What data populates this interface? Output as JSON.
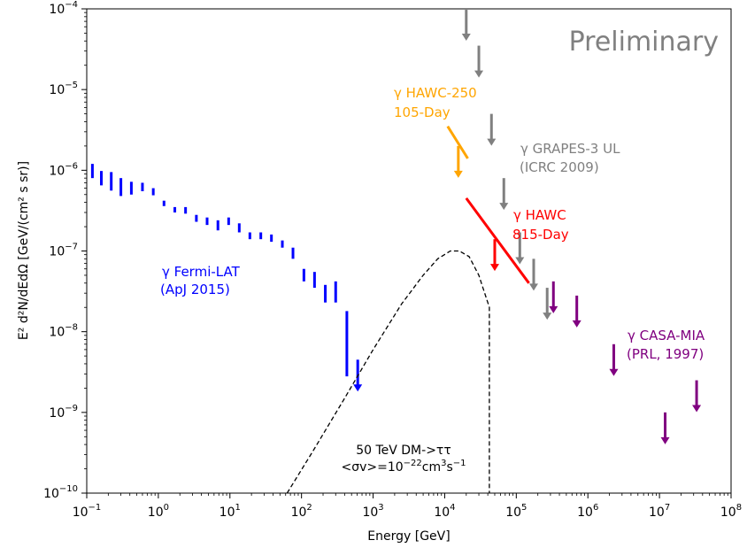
{
  "chart_data": {
    "type": "scatter",
    "xlabel": "Energy [GeV]",
    "ylabel": "E² d²N/dEdΩ  [GeV/(cm² s sr)]",
    "xscale": "log",
    "yscale": "log",
    "xlim": [
      0.1,
      100000000
    ],
    "ylim": [
      1e-10,
      0.0001
    ],
    "grid": false,
    "x_ticks": [
      {
        "value": 0.1,
        "base": "10",
        "exp": "−1"
      },
      {
        "value": 1,
        "base": "10",
        "exp": "0"
      },
      {
        "value": 10,
        "base": "10",
        "exp": "1"
      },
      {
        "value": 100,
        "base": "10",
        "exp": "2"
      },
      {
        "value": 1000,
        "base": "10",
        "exp": "3"
      },
      {
        "value": 10000,
        "base": "10",
        "exp": "4"
      },
      {
        "value": 100000,
        "base": "10",
        "exp": "5"
      },
      {
        "value": 1000000,
        "base": "10",
        "exp": "6"
      },
      {
        "value": 10000000,
        "base": "10",
        "exp": "7"
      },
      {
        "value": 100000000,
        "base": "10",
        "exp": "8"
      }
    ],
    "y_ticks": [
      {
        "value": 1e-10,
        "base": "10",
        "exp": "−10"
      },
      {
        "value": 1e-09,
        "base": "10",
        "exp": "−9"
      },
      {
        "value": 1e-08,
        "base": "10",
        "exp": "−8"
      },
      {
        "value": 1e-07,
        "base": "10",
        "exp": "−7"
      },
      {
        "value": 1e-06,
        "base": "10",
        "exp": "−6"
      },
      {
        "value": 1e-05,
        "base": "10",
        "exp": "−5"
      },
      {
        "value": 0.0001,
        "base": "10",
        "exp": "−4"
      }
    ],
    "watermark": "Preliminary",
    "annotations": {
      "fermi": {
        "line1": "γ Fermi-LAT",
        "line2": "(ApJ 2015)",
        "color": "#0000ff"
      },
      "hawc250": {
        "line1": "γ HAWC-250",
        "line2": "105-Day",
        "color": "#ffa500"
      },
      "grapes": {
        "line1": "γ GRAPES-3 UL",
        "line2": "(ICRC 2009)",
        "color": "#808080"
      },
      "hawc815": {
        "line1": "γ HAWC",
        "line2": "815-Day",
        "color": "#ff0000"
      },
      "casa": {
        "line1": "γ CASA-MIA",
        "line2": "(PRL, 1997)",
        "color": "#800080"
      },
      "dm": {
        "line1": "50 TeV DM->ττ",
        "line2_a": "<σv>=10",
        "line2_exp1": "−22",
        "line2_b": "cm",
        "line2_exp2": "3",
        "line2_c": "s",
        "line2_exp3": "−1"
      }
    },
    "series": [
      {
        "name": "γ Fermi-LAT",
        "kind": "error_bars",
        "color": "#0000ff",
        "points": [
          {
            "x": 0.12,
            "y_low": 8e-07,
            "y_high": 1.2e-06
          },
          {
            "x": 0.16,
            "y_low": 6.5e-07,
            "y_high": 9.8e-07
          },
          {
            "x": 0.22,
            "y_low": 5.6e-07,
            "y_high": 9.5e-07
          },
          {
            "x": 0.3,
            "y_low": 4.8e-07,
            "y_high": 8e-07
          },
          {
            "x": 0.42,
            "y_low": 5e-07,
            "y_high": 7.2e-07
          },
          {
            "x": 0.6,
            "y_low": 5.5e-07,
            "y_high": 7e-07
          },
          {
            "x": 0.85,
            "y_low": 4.9e-07,
            "y_high": 6e-07
          },
          {
            "x": 1.2,
            "y_low": 3.6e-07,
            "y_high": 4.2e-07
          },
          {
            "x": 1.7,
            "y_low": 3e-07,
            "y_high": 3.5e-07
          },
          {
            "x": 2.4,
            "y_low": 2.9e-07,
            "y_high": 3.5e-07
          },
          {
            "x": 3.4,
            "y_low": 2.3e-07,
            "y_high": 2.8e-07
          },
          {
            "x": 4.8,
            "y_low": 2.1e-07,
            "y_high": 2.6e-07
          },
          {
            "x": 6.8,
            "y_low": 1.8e-07,
            "y_high": 2.4e-07
          },
          {
            "x": 9.6,
            "y_low": 2.1e-07,
            "y_high": 2.6e-07
          },
          {
            "x": 13.5,
            "y_low": 1.7e-07,
            "y_high": 2.2e-07
          },
          {
            "x": 19,
            "y_low": 1.4e-07,
            "y_high": 1.7e-07
          },
          {
            "x": 27,
            "y_low": 1.4e-07,
            "y_high": 1.7e-07
          },
          {
            "x": 38,
            "y_low": 1.3e-07,
            "y_high": 1.6e-07
          },
          {
            "x": 54,
            "y_low": 1.1e-07,
            "y_high": 1.35e-07
          },
          {
            "x": 76,
            "y_low": 8e-08,
            "y_high": 1.1e-07
          },
          {
            "x": 108,
            "y_low": 4.2e-08,
            "y_high": 6e-08
          },
          {
            "x": 152,
            "y_low": 3.5e-08,
            "y_high": 5.5e-08
          },
          {
            "x": 215,
            "y_low": 2.3e-08,
            "y_high": 3.8e-08
          },
          {
            "x": 300,
            "y_low": 2.3e-08,
            "y_high": 4.2e-08
          },
          {
            "x": 430,
            "y_low": 2.8e-09,
            "y_high": 1.8e-08
          }
        ],
        "upper_limits": [
          {
            "x": 610,
            "y": 4.5e-09
          }
        ]
      },
      {
        "name": "γ HAWC-250",
        "kind": "line_with_limit",
        "color": "#ffa500",
        "line": [
          {
            "x": 11000,
            "y": 3.5e-06
          },
          {
            "x": 21000,
            "y": 1.4e-06
          }
        ],
        "upper_limits": [
          {
            "x": 15500,
            "y": 2e-06
          }
        ]
      },
      {
        "name": "γ GRAPES-3 UL",
        "kind": "upper_limits",
        "color": "#808080",
        "upper_limits": [
          {
            "x": 20000,
            "y": 0.0001
          },
          {
            "x": 30000,
            "y": 3.5e-05
          },
          {
            "x": 45000,
            "y": 5e-06
          },
          {
            "x": 67000,
            "y": 8e-07
          },
          {
            "x": 112000,
            "y": 1.7e-07
          },
          {
            "x": 175000,
            "y": 8e-08
          },
          {
            "x": 270000,
            "y": 3.5e-08
          }
        ]
      },
      {
        "name": "γ HAWC",
        "kind": "line_with_limit",
        "color": "#ff0000",
        "line": [
          {
            "x": 20000,
            "y": 4.5e-07
          },
          {
            "x": 150000,
            "y": 4e-08
          }
        ],
        "upper_limits": [
          {
            "x": 50000,
            "y": 1.4e-07
          }
        ]
      },
      {
        "name": "γ CASA-MIA",
        "kind": "upper_limits",
        "color": "#800080",
        "upper_limits": [
          {
            "x": 330000,
            "y": 4.2e-08
          },
          {
            "x": 700000,
            "y": 2.8e-08
          },
          {
            "x": 2300000,
            "y": 7e-09
          },
          {
            "x": 12000000,
            "y": 1e-09
          },
          {
            "x": 33000000,
            "y": 2.5e-09
          }
        ]
      },
      {
        "name": "50 TeV DM->ττ",
        "kind": "dashed_curve",
        "color": "#000000",
        "points": [
          {
            "x": 63,
            "y": 1e-10
          },
          {
            "x": 150,
            "y": 3.5e-10
          },
          {
            "x": 400,
            "y": 1.5e-09
          },
          {
            "x": 1000,
            "y": 6e-09
          },
          {
            "x": 2500,
            "y": 2.2e-08
          },
          {
            "x": 5000,
            "y": 5e-08
          },
          {
            "x": 8000,
            "y": 8e-08
          },
          {
            "x": 12000,
            "y": 1e-07
          },
          {
            "x": 16000,
            "y": 1e-07
          },
          {
            "x": 22000,
            "y": 8.5e-08
          },
          {
            "x": 30000,
            "y": 5e-08
          },
          {
            "x": 42000,
            "y": 2e-08
          },
          {
            "x": 42000,
            "y": 1e-10
          }
        ]
      }
    ]
  }
}
